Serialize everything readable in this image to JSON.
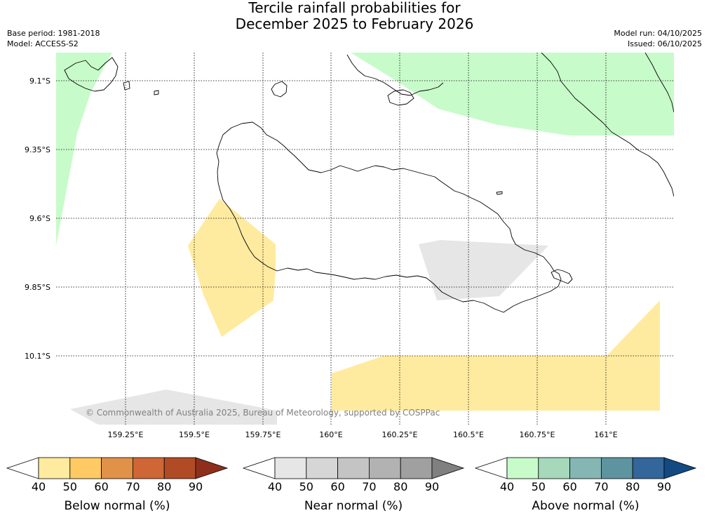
{
  "header": {
    "title_line1": "Tercile rainfall probabilities for",
    "title_line2": "December 2025 to February 2026",
    "base_period": "Base period: 1981-2018",
    "model": "Model: ACCESS-S2",
    "model_run": "Model run: 04/10/2025",
    "issued": "Issued: 06/10/2025"
  },
  "map": {
    "credit": "© Commonwealth of Australia 2025, Bureau of Meteorology, supported by COSPPac",
    "lat_ticks": [
      "9.1°S",
      "9.35°S",
      "9.6°S",
      "9.85°S",
      "10.1°S"
    ],
    "lon_ticks": [
      "159.25°E",
      "159.5°E",
      "159.75°E",
      "160°E",
      "160.25°E",
      "160.5°E",
      "160.75°E",
      "161°E"
    ],
    "region_colors": {
      "below": "#ffeb9f",
      "near": "#e6e6e6",
      "above": "#c8fbca"
    }
  },
  "colorbars": [
    {
      "label": "Below normal (%)",
      "ticks": [
        "40",
        "50",
        "60",
        "70",
        "80",
        "90"
      ],
      "colors": [
        "#ffffff",
        "#ffeb9f",
        "#ffca64",
        "#e09248",
        "#ce6735",
        "#b14b26",
        "#8f2f1b"
      ]
    },
    {
      "label": "Near normal (%)",
      "ticks": [
        "40",
        "50",
        "60",
        "70",
        "80",
        "90"
      ],
      "colors": [
        "#ffffff",
        "#e6e6e6",
        "#d6d6d6",
        "#c4c4c4",
        "#b2b2b2",
        "#a0a0a0",
        "#808080"
      ]
    },
    {
      "label": "Above normal (%)",
      "ticks": [
        "40",
        "50",
        "60",
        "70",
        "80",
        "90"
      ],
      "colors": [
        "#ffffff",
        "#c8fbca",
        "#a6d8bb",
        "#84b7b4",
        "#5e94a0",
        "#33669a",
        "#134a81"
      ]
    }
  ]
}
